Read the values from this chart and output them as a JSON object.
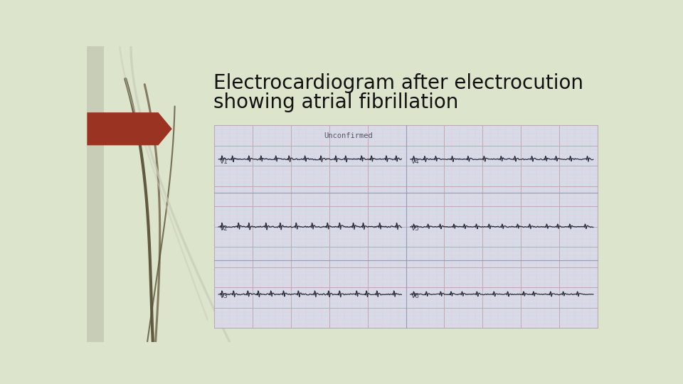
{
  "title_line1": "Electrocardiogram after electrocution",
  "title_line2": "showing atrial fibrillation",
  "title_fontsize": 20,
  "title_color": "#111111",
  "bg_color": "#dde4cc",
  "bg_left_color": "#c8cdb8",
  "arrow_color": "#9b3322",
  "ecg_bg": "#d8dae8",
  "ecg_grid_major_color": "#c0a8b0",
  "ecg_grid_minor_color": "#dcd0d8",
  "unconfirmed_text": "Unconfirmed",
  "grass_color1": "#7a7055",
  "grass_color2": "#5a5238",
  "grass_color3": "#c8cdb8",
  "ecg_line_color": "#2a2d3a"
}
